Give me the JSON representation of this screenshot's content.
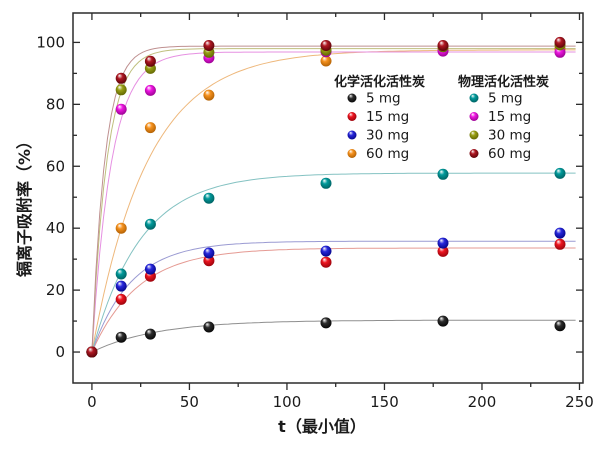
{
  "figure_title": "",
  "chart_data": {
    "type": "scatter",
    "title": "",
    "xlabel": "t（最小值）",
    "ylabel": "镉离子吸附率（%）",
    "xlim": [
      -9.7,
      251.8
    ],
    "ylim": [
      -10,
      109.5
    ],
    "x_major_ticks": [
      0,
      50,
      100,
      150,
      200,
      250
    ],
    "x_minor_ticks": [
      25,
      75,
      125,
      175,
      225
    ],
    "y_major_ticks": [
      0,
      20,
      40,
      60,
      80,
      100
    ],
    "y_minor_ticks": [
      10,
      30,
      50,
      70,
      90
    ],
    "grid": "off",
    "legend_position": "inside-top-right",
    "x": [
      0,
      15,
      30,
      60,
      120,
      180,
      240
    ],
    "groups": [
      {
        "header": "化学活化活性炭",
        "series": [
          {
            "label": "5 mg",
            "color": "#2e2e2e",
            "dark": "#000000",
            "line": "#8f8f8f",
            "fit": {
              "A": 10.3,
              "k": 0.03
            },
            "values": [
              0,
              4.8,
              5.8,
              8.1,
              9.4,
              10.0,
              8.5
            ]
          },
          {
            "label": "15 mg",
            "color": "#ee1520",
            "dark": "#8e0008",
            "line": "#e59a93",
            "fit": {
              "A": 33.6,
              "k": 0.042
            },
            "values": [
              0,
              17.0,
              24.5,
              29.5,
              29.0,
              32.5,
              34.8
            ]
          },
          {
            "label": "30 mg",
            "color": "#2828dc",
            "dark": "#00007e",
            "line": "#9a9ad2",
            "fit": {
              "A": 35.8,
              "k": 0.05
            },
            "values": [
              0,
              21.3,
              26.8,
              32.0,
              32.6,
              35.2,
              38.4
            ]
          },
          {
            "label": "60 mg",
            "color": "#f6921e",
            "dark": "#a85a00",
            "line": "#eeb87c",
            "fit": {
              "A": 97.6,
              "k": 0.035
            },
            "values": [
              0,
              40.0,
              72.5,
              83.0,
              94.0,
              97.5,
              98.0
            ]
          }
        ]
      },
      {
        "header": "物理活化活性炭",
        "series": [
          {
            "label": "5 mg",
            "color": "#019a9b",
            "dark": "#00595a",
            "line": "#84c2c2",
            "fit": {
              "A": 57.8,
              "k": 0.04
            },
            "values": [
              0,
              25.2,
              41.3,
              49.7,
              54.5,
              57.4,
              57.7
            ]
          },
          {
            "label": "15 mg",
            "color": "#ef16e2",
            "dark": "#8d0086",
            "line": "#e690e2",
            "fit": {
              "A": 96.9,
              "k": 0.1
            },
            "values": [
              0,
              78.4,
              84.5,
              95.0,
              97.0,
              97.2,
              96.8
            ]
          },
          {
            "label": "30 mg",
            "color": "#9aa015",
            "dark": "#5a5e00",
            "line": "#bfbf7d",
            "fit": {
              "A": 98.0,
              "k": 0.13
            },
            "values": [
              0,
              84.7,
              91.6,
              96.8,
              97.5,
              98.6,
              99.2
            ]
          },
          {
            "label": "60 mg",
            "color": "#b01823",
            "dark": "#4f0005",
            "line": "#bf9090",
            "fit": {
              "A": 98.8,
              "k": 0.15
            },
            "values": [
              0,
              88.4,
              93.9,
              99.0,
              99.0,
              99.0,
              100.0
            ]
          }
        ]
      }
    ]
  }
}
